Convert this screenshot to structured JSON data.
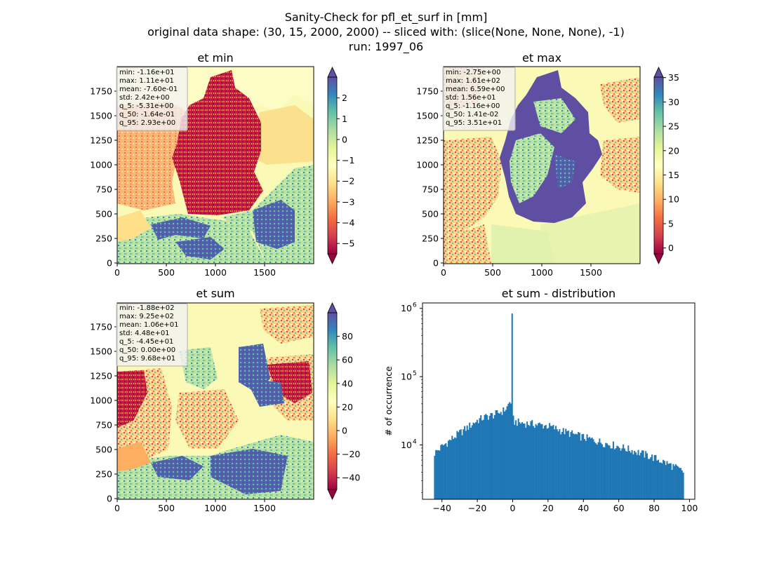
{
  "title_lines": [
    "Sanity-Check for pfl_et_surf in [mm]",
    "original data shape: (30, 15, 2000, 2000) -- sliced with: (slice(None, None, None), -1)",
    "run: 1997_06"
  ],
  "colors": {
    "hist_bar": "#1f77b4",
    "colormap": "Spectral",
    "region_fill": "#faf8b4"
  },
  "chart_data": [
    {
      "type": "heatmap",
      "title": "et min",
      "xlim": [
        0,
        2000
      ],
      "ylim": [
        0,
        2000
      ],
      "x_ticks": [
        "0",
        "500",
        "1000",
        "1500"
      ],
      "y_ticks": [
        "0",
        "250",
        "500",
        "750",
        "1000",
        "1250",
        "1500",
        "1750"
      ],
      "colorbar": {
        "min": -5.5,
        "max": 3.0,
        "extend": "both",
        "ticks": [
          2,
          1,
          0,
          -1,
          -2,
          -3,
          -4,
          -5
        ],
        "tick_labels": [
          "2",
          "1",
          "0",
          "−1",
          "−2",
          "−3",
          "−4",
          "−5"
        ]
      },
      "stats": [
        "min: -1.16e+01",
        "max: 1.11e+01",
        "mean: -7.60e-01",
        "std: 2.42e+00",
        "q_5: -5.31e+00",
        "q_50: -1.64e-01",
        "q_95: 2.93e+00"
      ]
    },
    {
      "type": "heatmap",
      "title": "et max",
      "xlim": [
        0,
        2000
      ],
      "ylim": [
        0,
        2000
      ],
      "x_ticks": [
        "0",
        "500",
        "1000",
        "1500"
      ],
      "y_ticks": [
        "0",
        "250",
        "500",
        "750",
        "1000",
        "1250",
        "1500",
        "1750"
      ],
      "colorbar": {
        "min": -1.2,
        "max": 35.1,
        "extend": "both",
        "ticks": [
          35,
          30,
          25,
          20,
          15,
          10,
          5,
          0
        ],
        "tick_labels": [
          "35",
          "30",
          "25",
          "20",
          "15",
          "10",
          "5",
          "0"
        ]
      },
      "stats": [
        "min: -2.75e+00",
        "max: 1.61e+02",
        "mean: 6.59e+00",
        "std: 1.56e+01",
        "q_5: -1.16e+00",
        "q_50: 1.41e-02",
        "q_95: 3.51e+01"
      ]
    },
    {
      "type": "heatmap",
      "title": "et sum",
      "xlim": [
        0,
        2000
      ],
      "ylim": [
        0,
        2000
      ],
      "x_ticks": [
        "0",
        "500",
        "1000",
        "1500"
      ],
      "y_ticks": [
        "0",
        "250",
        "500",
        "750",
        "1000",
        "1250",
        "1500",
        "1750"
      ],
      "colorbar": {
        "min": -50,
        "max": 100,
        "extend": "both",
        "ticks": [
          80,
          60,
          40,
          20,
          0,
          -20,
          -40
        ],
        "tick_labels": [
          "80",
          "60",
          "40",
          "20",
          "0",
          "−20",
          "−40"
        ]
      },
      "stats": [
        "min: -1.88e+02",
        "max: 9.25e+02",
        "mean: 1.06e+01",
        "std: 4.48e+01",
        "q_5: -4.45e+01",
        "q_50: 0.00e+00",
        "q_95: 9.68e+01"
      ]
    },
    {
      "type": "bar",
      "title": "et sum - distribution",
      "ylabel": "# of occurrence",
      "yscale": "log",
      "xlim": [
        -51,
        103
      ],
      "ylim": [
        1600,
        1200000
      ],
      "x_ticks": [
        -40,
        -20,
        0,
        20,
        40,
        60,
        80,
        100
      ],
      "x_tick_labels": [
        "−40",
        "−20",
        "0",
        "20",
        "40",
        "60",
        "80",
        "100"
      ],
      "y_major_ticks": [
        10000,
        100000,
        1000000
      ],
      "y_tick_labels": [
        "10",
        "10",
        "10"
      ],
      "y_tick_exponents": [
        "4",
        "5",
        "6"
      ],
      "bin_range": [
        -44.5,
        96.8
      ],
      "profile_x": [
        -44.5,
        -42,
        -40,
        -35,
        -30,
        -25,
        -20,
        -15,
        -10,
        -5,
        -3,
        -2,
        -1,
        -0.3,
        0,
        1,
        5,
        10,
        20,
        30,
        40,
        50,
        60,
        70,
        80,
        90,
        96.8
      ],
      "profile_y": [
        7500,
        8500,
        9500,
        12000,
        15000,
        18500,
        23000,
        26000,
        28000,
        32000,
        36000,
        42000,
        43000,
        840000,
        25000,
        22000,
        21000,
        20500,
        19000,
        15500,
        13000,
        11000,
        9500,
        8000,
        6500,
        5000,
        4000
      ]
    }
  ]
}
